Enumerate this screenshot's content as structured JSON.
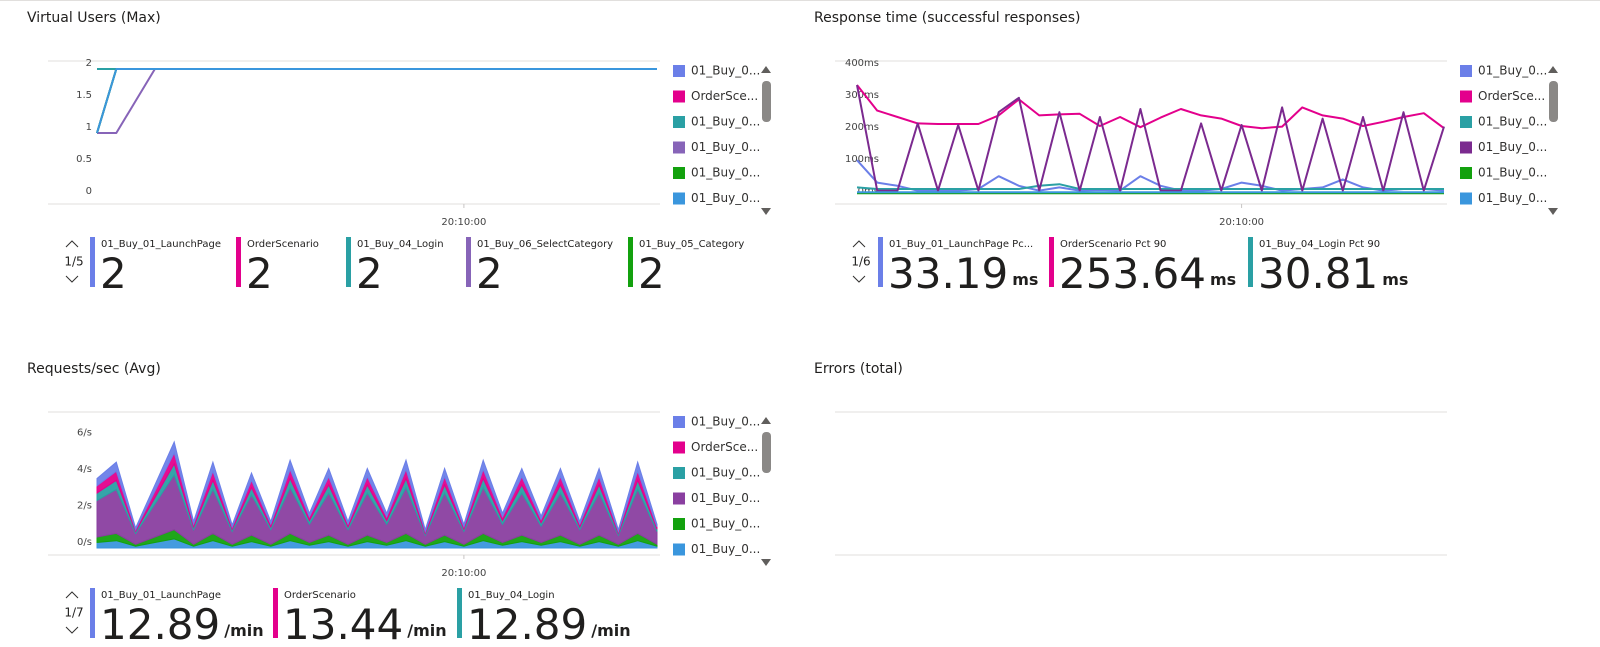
{
  "chart_data": [
    {
      "type": "line",
      "title": "Virtual Users (Max)",
      "categories": [
        null,
        null,
        null,
        null,
        null,
        null,
        null,
        null,
        null,
        null,
        null,
        null,
        null,
        null,
        null,
        null,
        null,
        null,
        null,
        "20:10:00",
        null,
        null,
        null,
        null,
        null,
        null,
        null,
        null,
        null,
        null
      ],
      "ylim": [
        0,
        2
      ],
      "yticks": [
        0,
        0.5,
        1,
        1.5,
        2
      ],
      "grid": false,
      "series": [
        {
          "name": "01_Buy_0...",
          "color": "#6b7fe8",
          "values": [
            1,
            2,
            2,
            2,
            2,
            2,
            2,
            2,
            2,
            2,
            2,
            2,
            2,
            2,
            2,
            2,
            2,
            2,
            2,
            2,
            2,
            2,
            2,
            2,
            2,
            2,
            2,
            2,
            2,
            2
          ]
        },
        {
          "name": "OrderSce...",
          "color": "#e3008c",
          "values": [
            2,
            2,
            2,
            2,
            2,
            2,
            2,
            2,
            2,
            2,
            2,
            2,
            2,
            2,
            2,
            2,
            2,
            2,
            2,
            2,
            2,
            2,
            2,
            2,
            2,
            2,
            2,
            2,
            2,
            2
          ]
        },
        {
          "name": "01_Buy_0...",
          "color": "#2aa0a4",
          "values": [
            2,
            2,
            2,
            2,
            2,
            2,
            2,
            2,
            2,
            2,
            2,
            2,
            2,
            2,
            2,
            2,
            2,
            2,
            2,
            2,
            2,
            2,
            2,
            2,
            2,
            2,
            2,
            2,
            2,
            2
          ]
        },
        {
          "name": "01_Buy_0...",
          "color": "#8764b8",
          "values": [
            1,
            1,
            1.5,
            2,
            2,
            2,
            2,
            2,
            2,
            2,
            2,
            2,
            2,
            2,
            2,
            2,
            2,
            2,
            2,
            2,
            2,
            2,
            2,
            2,
            2,
            2,
            2,
            2,
            2,
            2
          ]
        },
        {
          "name": "01_Buy_0...",
          "color": "#13a10e",
          "values": [
            1,
            2,
            2,
            2,
            2,
            2,
            2,
            2,
            2,
            2,
            2,
            2,
            2,
            2,
            2,
            2,
            2,
            2,
            2,
            2,
            2,
            2,
            2,
            2,
            2,
            2,
            2,
            2,
            2,
            2
          ]
        },
        {
          "name": "01_Buy_0...",
          "color": "#3a96dd",
          "values": [
            1,
            2,
            2,
            2,
            2,
            2,
            2,
            2,
            2,
            2,
            2,
            2,
            2,
            2,
            2,
            2,
            2,
            2,
            2,
            2,
            2,
            2,
            2,
            2,
            2,
            2,
            2,
            2,
            2,
            2
          ]
        }
      ],
      "pager": "1/5",
      "summary": [
        {
          "name": "01_Buy_01_LaunchPage",
          "value": 2
        },
        {
          "name": "OrderScenario",
          "value": 2
        },
        {
          "name": "01_Buy_04_Login",
          "value": 2
        },
        {
          "name": "01_Buy_06_SelectCategory",
          "value": 2
        },
        {
          "name": "01_Buy_05_Category",
          "value": 2
        }
      ]
    },
    {
      "type": "line",
      "title": "Response time (successful responses)",
      "categories": [
        null,
        null,
        null,
        null,
        null,
        null,
        null,
        null,
        null,
        null,
        null,
        null,
        null,
        null,
        null,
        null,
        null,
        null,
        null,
        "20:10:00",
        null,
        null,
        null,
        null,
        null,
        null,
        null,
        null,
        null,
        null
      ],
      "ylim": [
        0,
        400
      ],
      "yticks": [
        {
          "value": 0,
          "label": "0ms"
        },
        {
          "value": 100,
          "label": "100ms"
        },
        {
          "value": 200,
          "label": "200ms"
        },
        {
          "value": 300,
          "label": "300ms"
        },
        {
          "value": 400,
          "label": "400ms"
        }
      ],
      "grid": false,
      "series": [
        {
          "name": "01_Buy_0...",
          "color": "#6b7fe8",
          "values": [
            115,
            45,
            35,
            20,
            20,
            20,
            25,
            65,
            35,
            20,
            30,
            20,
            22,
            20,
            65,
            35,
            20,
            20,
            25,
            45,
            35,
            20,
            25,
            30,
            55,
            30,
            20,
            25,
            25,
            20
          ]
        },
        {
          "name": "OrderSce...",
          "color": "#e3008c",
          "values": [
            350,
            270,
            250,
            230,
            228,
            228,
            228,
            255,
            305,
            255,
            258,
            260,
            222,
            250,
            218,
            248,
            275,
            255,
            245,
            222,
            215,
            220,
            280,
            255,
            245,
            222,
            235,
            250,
            262,
            215
          ]
        },
        {
          "name": "01_Buy_0...",
          "color": "#2aa0a4",
          "values": [
            30,
            25,
            25,
            25,
            25,
            25,
            25,
            25,
            25,
            35,
            40,
            25,
            25,
            25,
            25,
            25,
            25,
            25,
            25,
            25,
            25,
            25,
            25,
            25,
            25,
            25,
            25,
            25,
            25,
            25
          ]
        },
        {
          "name": "01_Buy_0...",
          "color": "#7b2a8f",
          "values": [
            350,
            20,
            20,
            230,
            20,
            225,
            20,
            265,
            310,
            20,
            265,
            20,
            250,
            20,
            275,
            20,
            20,
            230,
            20,
            225,
            20,
            280,
            20,
            245,
            20,
            250,
            20,
            265,
            20,
            220
          ]
        },
        {
          "name": "01_Buy_0...",
          "color": "#13a10e",
          "values": [
            12,
            12,
            12,
            12,
            12,
            12,
            12,
            12,
            12,
            12,
            12,
            12,
            12,
            12,
            12,
            12,
            12,
            12,
            12,
            12,
            12,
            12,
            12,
            12,
            12,
            12,
            12,
            12,
            12,
            12
          ]
        },
        {
          "name": "01_Buy_0...",
          "color": "#3a96dd",
          "values": [
            15,
            15,
            15,
            15,
            15,
            15,
            15,
            15,
            15,
            15,
            15,
            15,
            15,
            15,
            15,
            15,
            15,
            15,
            15,
            15,
            15,
            15,
            15,
            15,
            15,
            15,
            15,
            15,
            15,
            15
          ]
        }
      ],
      "pager": "1/6",
      "summary": [
        {
          "name": "01_Buy_01_LaunchPage Pc...",
          "value": 33.19,
          "unit": "ms"
        },
        {
          "name": "OrderScenario Pct 90",
          "value": 253.64,
          "unit": "ms"
        },
        {
          "name": "01_Buy_04_Login Pct 90",
          "value": 30.81,
          "unit": "ms"
        }
      ]
    },
    {
      "type": "stacked-area",
      "title": "Requests/sec (Avg)",
      "categories": [
        null,
        null,
        null,
        null,
        null,
        null,
        null,
        null,
        null,
        null,
        null,
        null,
        null,
        null,
        null,
        null,
        null,
        null,
        null,
        "20:10:00",
        null,
        null,
        null,
        null,
        null,
        null,
        null,
        null,
        null,
        null
      ],
      "ylim": [
        0,
        7
      ],
      "yticks": [
        {
          "value": 0,
          "label": "0/s"
        },
        {
          "value": 2,
          "label": "2/s"
        },
        {
          "value": 4,
          "label": "4/s"
        },
        {
          "value": 6,
          "label": "6/s"
        }
      ],
      "grid": false,
      "series": [
        {
          "name": "01_Buy_0...",
          "color": "#6b7fe8",
          "values": [
            0.4,
            0.5,
            0.1,
            0.35,
            0.6,
            0.15,
            0.5,
            0.12,
            0.4,
            0.15,
            0.5,
            0.2,
            0.45,
            0.15,
            0.45,
            0.2,
            0.5,
            0.1,
            0.45,
            0.13,
            0.5,
            0.2,
            0.45,
            0.18,
            0.45,
            0.15,
            0.45,
            0.1,
            0.5,
            0.13
          ]
        },
        {
          "name": "OrderSce...",
          "color": "#e3008c",
          "values": [
            0.4,
            0.5,
            0.1,
            0.35,
            0.6,
            0.15,
            0.5,
            0.12,
            0.4,
            0.15,
            0.5,
            0.2,
            0.45,
            0.15,
            0.45,
            0.2,
            0.5,
            0.1,
            0.45,
            0.13,
            0.5,
            0.2,
            0.45,
            0.18,
            0.45,
            0.15,
            0.45,
            0.1,
            0.5,
            0.13
          ]
        },
        {
          "name": "01_Buy_0...",
          "color": "#2aa0a4",
          "values": [
            0.4,
            0.5,
            0.1,
            0.35,
            0.6,
            0.15,
            0.5,
            0.12,
            0.4,
            0.15,
            0.5,
            0.2,
            0.45,
            0.15,
            0.45,
            0.2,
            0.5,
            0.1,
            0.45,
            0.13,
            0.5,
            0.2,
            0.45,
            0.18,
            0.45,
            0.15,
            0.45,
            0.1,
            0.5,
            0.13
          ]
        },
        {
          "name": "01_Buy_0...",
          "color": "#8a3fa0",
          "values": [
            2,
            2.4,
            0.6,
            1.8,
            3,
            0.8,
            2.4,
            0.7,
            2.2,
            0.8,
            2.5,
            1,
            2.3,
            0.8,
            2.3,
            1,
            2.5,
            0.5,
            2.3,
            0.7,
            2.5,
            1,
            2.3,
            0.9,
            2.3,
            0.8,
            2.3,
            0.5,
            2.4,
            0.7
          ]
        },
        {
          "name": "01_Buy_0...",
          "color": "#13a10e",
          "values": [
            0.3,
            0.4,
            0.1,
            0.3,
            0.5,
            0.1,
            0.4,
            0.1,
            0.35,
            0.1,
            0.4,
            0.15,
            0.35,
            0.1,
            0.35,
            0.15,
            0.4,
            0.1,
            0.35,
            0.1,
            0.4,
            0.15,
            0.35,
            0.15,
            0.35,
            0.1,
            0.35,
            0.1,
            0.4,
            0.1
          ]
        },
        {
          "name": "01_Buy_0...",
          "color": "#3a96dd",
          "values": [
            0.3,
            0.4,
            0.1,
            0.3,
            0.5,
            0.1,
            0.4,
            0.1,
            0.35,
            0.1,
            0.4,
            0.15,
            0.35,
            0.1,
            0.35,
            0.15,
            0.4,
            0.1,
            0.35,
            0.1,
            0.4,
            0.15,
            0.35,
            0.15,
            0.35,
            0.1,
            0.35,
            0.1,
            0.4,
            0.1
          ]
        }
      ],
      "pager": "1/7",
      "summary": [
        {
          "name": "01_Buy_01_LaunchPage",
          "value": 12.89,
          "unit": "/min"
        },
        {
          "name": "OrderScenario",
          "value": 13.44,
          "unit": "/min"
        },
        {
          "name": "01_Buy_04_Login",
          "value": 12.89,
          "unit": "/min"
        }
      ]
    },
    {
      "type": "line",
      "title": "Errors (total)"
    }
  ]
}
